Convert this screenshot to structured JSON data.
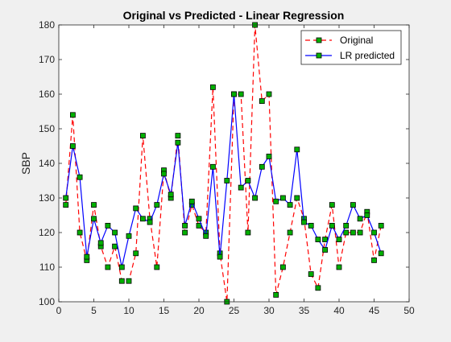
{
  "chart_data": {
    "type": "line",
    "title": "Original vs Predicted - Linear Regression",
    "xlabel": "",
    "ylabel": "SBP",
    "xlim": [
      0,
      50
    ],
    "ylim": [
      100,
      180
    ],
    "xticks": [
      0,
      5,
      10,
      15,
      20,
      25,
      30,
      35,
      40,
      45,
      50
    ],
    "yticks": [
      100,
      110,
      120,
      130,
      140,
      150,
      160,
      170,
      180
    ],
    "grid": false,
    "legend_position": "top-right",
    "x": [
      1,
      2,
      3,
      4,
      5,
      6,
      7,
      8,
      9,
      10,
      11,
      12,
      13,
      14,
      15,
      16,
      17,
      18,
      19,
      20,
      21,
      22,
      23,
      24,
      25,
      26,
      27,
      28,
      29,
      30,
      31,
      32,
      33,
      34,
      35,
      36,
      37,
      38,
      39,
      40,
      41,
      42,
      43,
      44,
      45,
      46
    ],
    "series": [
      {
        "name": "Original",
        "color": "#ff0000",
        "line_style": "dashed",
        "marker": "square",
        "marker_face": "#00b000",
        "values": [
          128,
          154,
          120,
          112,
          128,
          116,
          110,
          116,
          106,
          106,
          114,
          148,
          124,
          110,
          138,
          130,
          148,
          120,
          128,
          122,
          120,
          162,
          114,
          100,
          160,
          160,
          120,
          180,
          158,
          160,
          102,
          110,
          120,
          130,
          124,
          108,
          104,
          118,
          128,
          110,
          120,
          120,
          120,
          126,
          112,
          122
        ]
      },
      {
        "name": "LR predicted",
        "color": "#0000ff",
        "line_style": "solid",
        "marker": "square",
        "marker_face": "#00b000",
        "values": [
          130,
          145,
          136,
          113,
          124,
          117,
          122,
          120,
          110,
          119,
          127,
          124,
          123,
          128,
          137,
          131,
          146,
          122,
          129,
          124,
          119,
          139,
          113,
          135,
          160,
          133,
          135,
          130,
          139,
          142,
          129,
          130,
          128,
          144,
          123,
          122,
          118,
          115,
          122,
          118,
          122,
          128,
          124,
          125,
          120,
          114
        ]
      }
    ]
  }
}
